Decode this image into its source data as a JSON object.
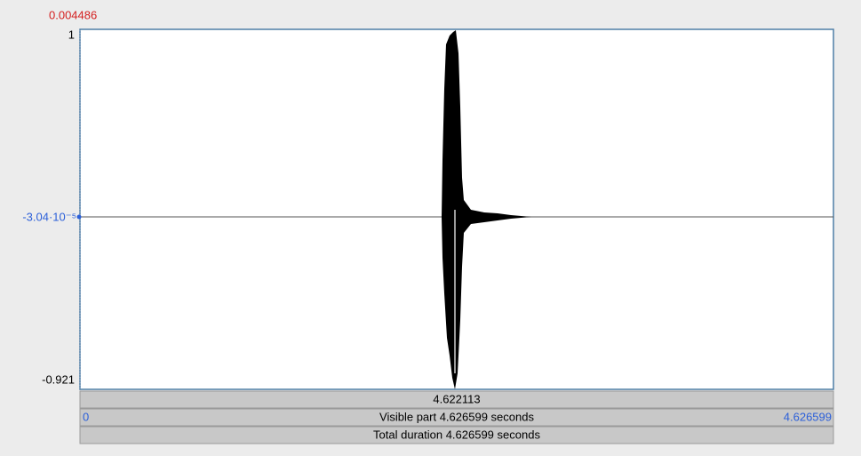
{
  "cursor_time": "0.004486",
  "y_axis": {
    "max": "1",
    "cursor_value": "-3.04·10⁻⁵",
    "min": "-0.921"
  },
  "selection_bar": {
    "time": "4.622113"
  },
  "visible_bar": {
    "start": "0",
    "label": "Visible part 4.626599 seconds",
    "end": "4.626599"
  },
  "total_bar": {
    "label": "Total duration 4.626599 seconds"
  }
}
